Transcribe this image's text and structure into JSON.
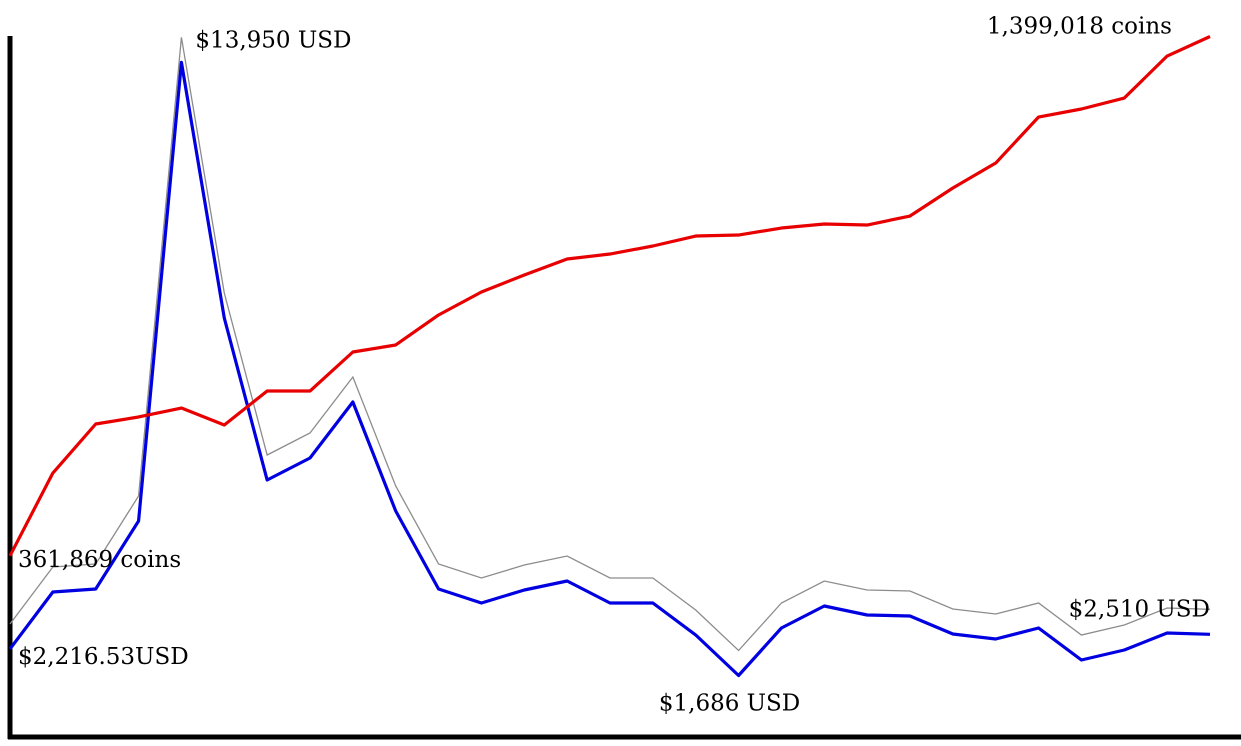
{
  "chart_data": {
    "type": "line",
    "ylim": [
      456,
      14476
    ],
    "y2lim": [
      0,
      1400000
    ],
    "series": [
      {
        "name": "USD",
        "color": "#0000e0",
        "shadow_color": "#8c8c8c",
        "axis": "y",
        "values": [
          2216.53,
          3356,
          3416,
          4776,
          13950,
          8836,
          5596,
          6036,
          7156,
          4976,
          3416,
          3136,
          3396,
          3576,
          3136,
          3136,
          2496,
          1686,
          2636,
          3076,
          2896,
          2876,
          2516,
          2416,
          2636,
          1996,
          2196,
          2536,
          2510
        ],
        "value_labels": [
          "$2,216.53USD",
          null,
          null,
          null,
          "$13,950 USD",
          null,
          null,
          null,
          null,
          null,
          null,
          null,
          null,
          null,
          null,
          null,
          null,
          "$1,686 USD",
          null,
          null,
          null,
          null,
          null,
          null,
          null,
          null,
          null,
          null,
          "$2,510 USD"
        ]
      },
      {
        "name": "coins",
        "color": "#e80000",
        "axis": "y2",
        "values": [
          361869,
          527200,
          625100,
          639100,
          657000,
          623100,
          691000,
          691000,
          768900,
          782900,
          842800,
          888700,
          922700,
          954600,
          964600,
          980600,
          1000500,
          1002500,
          1016500,
          1024500,
          1022500,
          1040500,
          1096400,
          1146300,
          1238200,
          1254200,
          1276100,
          1360000,
          1399018
        ],
        "value_labels": [
          "361,869 coins",
          null,
          null,
          null,
          null,
          null,
          null,
          null,
          null,
          null,
          null,
          null,
          null,
          null,
          null,
          null,
          null,
          null,
          null,
          null,
          null,
          null,
          null,
          null,
          null,
          null,
          null,
          null,
          "1,399,018 coins"
        ]
      }
    ]
  }
}
